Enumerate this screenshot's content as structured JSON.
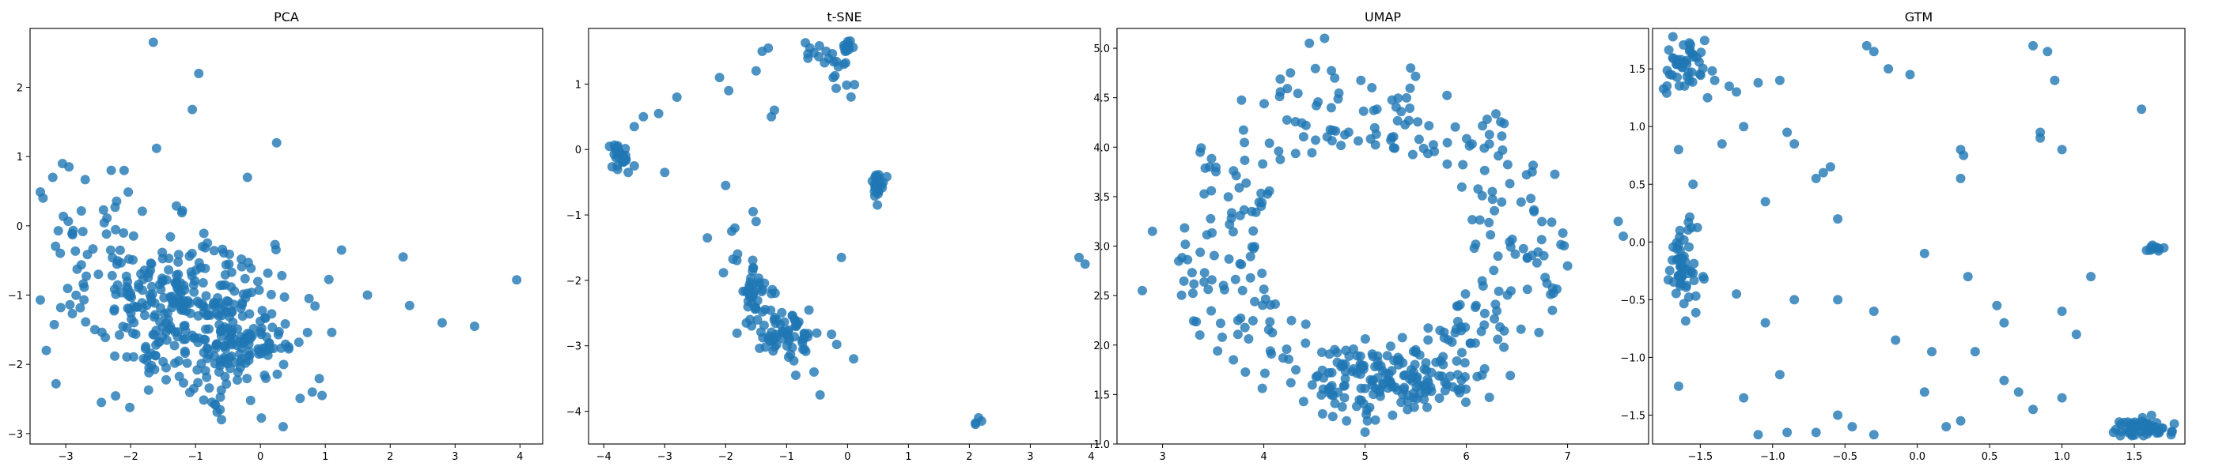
{
  "chart_data": [
    {
      "type": "scatter",
      "title": "PCA",
      "xlabel": "",
      "ylabel": "",
      "xlim": [
        -3.55,
        4.35
      ],
      "ylim": [
        -3.15,
        2.85
      ],
      "xticks": [
        -3,
        -2,
        -1,
        0,
        1,
        2,
        3,
        4
      ],
      "yticks": [
        -3,
        -2,
        -1,
        0,
        1,
        2
      ],
      "grid": false,
      "color": "#1f77b4",
      "clusters": [
        {
          "cx": -1.2,
          "cy": -1.2,
          "sx": 0.7,
          "sy": 0.55,
          "n": 260
        },
        {
          "cx": -0.3,
          "cy": -1.7,
          "sx": 0.55,
          "sy": 0.5,
          "n": 120
        },
        {
          "cx": -2.3,
          "cy": -0.3,
          "sx": 0.5,
          "sy": 0.5,
          "n": 50
        }
      ],
      "points": [
        {
          "x": -1.65,
          "y": 2.65
        },
        {
          "x": -0.95,
          "y": 2.2
        },
        {
          "x": -1.05,
          "y": 1.68
        },
        {
          "x": 0.25,
          "y": 1.2
        },
        {
          "x": -1.6,
          "y": 1.12
        },
        {
          "x": -3.05,
          "y": 0.9
        },
        {
          "x": -2.95,
          "y": 0.85
        },
        {
          "x": -3.2,
          "y": 0.7
        },
        {
          "x": -3.35,
          "y": 0.4
        },
        {
          "x": -0.2,
          "y": 0.7
        },
        {
          "x": -2.1,
          "y": 0.8
        },
        {
          "x": -3.4,
          "y": -1.07
        },
        {
          "x": -3.3,
          "y": -1.8
        },
        {
          "x": -3.15,
          "y": -2.28
        },
        {
          "x": -2.45,
          "y": -2.55
        },
        {
          "x": 1.25,
          "y": -0.35
        },
        {
          "x": 2.2,
          "y": -0.45
        },
        {
          "x": 1.65,
          "y": -1.0
        },
        {
          "x": 2.3,
          "y": -1.15
        },
        {
          "x": 2.8,
          "y": -1.4
        },
        {
          "x": 3.3,
          "y": -1.45
        },
        {
          "x": 3.95,
          "y": -0.78
        },
        {
          "x": 0.35,
          "y": -2.9
        },
        {
          "x": -0.6,
          "y": -2.8
        },
        {
          "x": 0.8,
          "y": -2.4
        },
        {
          "x": 0.95,
          "y": -2.45
        },
        {
          "x": 0.75,
          "y": -1.05
        }
      ]
    },
    {
      "type": "scatter",
      "title": "t-SNE",
      "xlabel": "",
      "ylabel": "",
      "xlim": [
        -4.25,
        4.15
      ],
      "ylim": [
        -4.5,
        1.85
      ],
      "xticks": [
        -4,
        -3,
        -2,
        -1,
        0,
        1,
        2,
        3,
        4
      ],
      "yticks": [
        -4,
        -3,
        -2,
        -1,
        0,
        1
      ],
      "grid": false,
      "color": "#1f77b4",
      "clusters": [
        {
          "cx": -1.55,
          "cy": -2.15,
          "sx": 0.18,
          "sy": 0.25,
          "n": 40
        },
        {
          "cx": -1.0,
          "cy": -2.8,
          "sx": 0.28,
          "sy": 0.2,
          "n": 70
        },
        {
          "cx": -3.75,
          "cy": -0.1,
          "sx": 0.1,
          "sy": 0.1,
          "n": 25
        },
        {
          "cx": 0.5,
          "cy": -0.52,
          "sx": 0.05,
          "sy": 0.1,
          "n": 25
        },
        {
          "cx": 0.0,
          "cy": 1.58,
          "sx": 0.05,
          "sy": 0.04,
          "n": 14
        },
        {
          "cx": -0.5,
          "cy": 1.5,
          "sx": 0.15,
          "sy": 0.1,
          "n": 12
        },
        {
          "cx": -0.1,
          "cy": 1.1,
          "sx": 0.1,
          "sy": 0.15,
          "n": 10
        }
      ],
      "points": [
        {
          "x": -3.5,
          "y": 0.35
        },
        {
          "x": -3.35,
          "y": 0.5
        },
        {
          "x": -3.1,
          "y": 0.55
        },
        {
          "x": -2.8,
          "y": 0.8
        },
        {
          "x": -3.6,
          "y": -0.35
        },
        {
          "x": -3.5,
          "y": -0.25
        },
        {
          "x": -3.0,
          "y": -0.35
        },
        {
          "x": -2.1,
          "y": 1.1
        },
        {
          "x": -1.95,
          "y": 0.9
        },
        {
          "x": -1.4,
          "y": 1.5
        },
        {
          "x": -1.3,
          "y": 1.55
        },
        {
          "x": -1.5,
          "y": 1.2
        },
        {
          "x": -1.2,
          "y": 0.6
        },
        {
          "x": -1.25,
          "y": 0.5
        },
        {
          "x": -2.0,
          "y": -0.55
        },
        {
          "x": -1.85,
          "y": -1.2
        },
        {
          "x": -1.55,
          "y": -0.95
        },
        {
          "x": -1.5,
          "y": -1.1
        },
        {
          "x": -2.3,
          "y": -1.35
        },
        {
          "x": -1.9,
          "y": -1.25
        },
        {
          "x": -0.1,
          "y": -1.65
        },
        {
          "x": -0.55,
          "y": -3.4
        },
        {
          "x": -0.45,
          "y": -3.75
        },
        {
          "x": 0.1,
          "y": -3.2
        },
        {
          "x": -0.85,
          "y": -3.45
        },
        {
          "x": 3.8,
          "y": -1.65
        },
        {
          "x": 3.9,
          "y": -1.75
        },
        {
          "x": 2.1,
          "y": -4.2
        },
        {
          "x": 2.15,
          "y": -4.1
        },
        {
          "x": 2.2,
          "y": -4.15
        },
        {
          "x": 2.1,
          "y": -4.18
        }
      ]
    },
    {
      "type": "scatter",
      "title": "UMAP",
      "xlabel": "",
      "ylabel": "",
      "xlim": [
        2.55,
        7.8
      ],
      "ylim": [
        1.0,
        5.2
      ],
      "xticks": [
        3,
        4,
        5,
        6,
        7
      ],
      "yticks": [
        1.0,
        1.5,
        2.0,
        2.5,
        3.0,
        3.5,
        4.0,
        4.5,
        5.0
      ],
      "tick_labels": {
        "y": [
          "1.0",
          "1.5",
          "2.0",
          "2.5",
          "3.0",
          "3.5",
          "4.0",
          "4.5",
          "5.0"
        ]
      },
      "grid": false,
      "color": "#1f77b4",
      "ring": {
        "cx": 5.0,
        "cy": 3.05,
        "rx": 1.55,
        "ry": 1.4,
        "width": 0.45,
        "n": 330
      },
      "clusters": [
        {
          "cx": 5.3,
          "cy": 1.65,
          "sx": 0.4,
          "sy": 0.15,
          "n": 120
        }
      ],
      "points": [
        {
          "x": 2.8,
          "y": 2.55
        },
        {
          "x": 2.9,
          "y": 3.15
        },
        {
          "x": 7.5,
          "y": 3.25
        },
        {
          "x": 7.55,
          "y": 3.1
        },
        {
          "x": 7.0,
          "y": 2.8
        },
        {
          "x": 6.85,
          "y": 2.35
        },
        {
          "x": 4.6,
          "y": 5.1
        },
        {
          "x": 4.45,
          "y": 5.05
        },
        {
          "x": 5.45,
          "y": 4.8
        },
        {
          "x": 6.65,
          "y": 3.75
        },
        {
          "x": 5.0,
          "y": 1.12
        },
        {
          "x": 3.7,
          "y": 1.85
        }
      ]
    },
    {
      "type": "scatter",
      "title": "GTM",
      "xlabel": "",
      "ylabel": "",
      "xlim": [
        -1.83,
        1.85
      ],
      "ylim": [
        -1.75,
        1.85
      ],
      "xticks": [
        -1.5,
        -1.0,
        -0.5,
        0.0,
        0.5,
        1.0,
        1.5
      ],
      "yticks": [
        -1.5,
        -1.0,
        -0.5,
        0.0,
        0.5,
        1.0,
        1.5
      ],
      "tick_labels": {
        "x": [
          "−1.5",
          "−1.0",
          "−0.5",
          "0.0",
          "0.5",
          "1.0",
          "1.5"
        ],
        "y": [
          "−1.5",
          "−1.0",
          "−0.5",
          "0.0",
          "0.5",
          "1.0",
          "1.5"
        ]
      },
      "grid": false,
      "color": "#1f77b4",
      "clusters": [
        {
          "cx": -1.6,
          "cy": 1.5,
          "sx": 0.07,
          "sy": 0.13,
          "n": 45
        },
        {
          "cx": -1.62,
          "cy": -0.2,
          "sx": 0.05,
          "sy": 0.18,
          "n": 55
        },
        {
          "cx": 1.55,
          "cy": -1.62,
          "sx": 0.1,
          "sy": 0.05,
          "n": 55
        },
        {
          "cx": 1.65,
          "cy": -0.05,
          "sx": 0.03,
          "sy": 0.01,
          "n": 10
        }
      ],
      "points": [
        {
          "x": -1.4,
          "y": 1.4
        },
        {
          "x": -1.3,
          "y": 1.35
        },
        {
          "x": -1.25,
          "y": 1.3
        },
        {
          "x": -1.45,
          "y": 1.25
        },
        {
          "x": -0.95,
          "y": 1.4
        },
        {
          "x": -1.1,
          "y": 1.38
        },
        {
          "x": -0.35,
          "y": 1.7
        },
        {
          "x": -0.3,
          "y": 1.65
        },
        {
          "x": -0.2,
          "y": 1.5
        },
        {
          "x": -0.05,
          "y": 1.45
        },
        {
          "x": 0.8,
          "y": 1.7
        },
        {
          "x": 0.9,
          "y": 1.65
        },
        {
          "x": 0.95,
          "y": 1.4
        },
        {
          "x": 1.55,
          "y": 1.15
        },
        {
          "x": -1.65,
          "y": 0.8
        },
        {
          "x": -1.55,
          "y": 0.5
        },
        {
          "x": -1.35,
          "y": 0.85
        },
        {
          "x": -1.2,
          "y": 1.0
        },
        {
          "x": -0.9,
          "y": 0.95
        },
        {
          "x": -0.85,
          "y": 0.85
        },
        {
          "x": -0.7,
          "y": 0.55
        },
        {
          "x": -0.65,
          "y": 0.6
        },
        {
          "x": -0.55,
          "y": 0.2
        },
        {
          "x": -0.6,
          "y": 0.65
        },
        {
          "x": 0.3,
          "y": 0.8
        },
        {
          "x": 0.32,
          "y": 0.75
        },
        {
          "x": 0.3,
          "y": 0.55
        },
        {
          "x": 0.85,
          "y": 0.95
        },
        {
          "x": 0.85,
          "y": 0.9
        },
        {
          "x": 1.0,
          "y": 0.8
        },
        {
          "x": -1.05,
          "y": 0.35
        },
        {
          "x": 1.2,
          "y": -0.3
        },
        {
          "x": 0.35,
          "y": -0.3
        },
        {
          "x": 0.05,
          "y": -0.1
        },
        {
          "x": -1.25,
          "y": -0.45
        },
        {
          "x": -1.05,
          "y": -0.7
        },
        {
          "x": -0.85,
          "y": -0.5
        },
        {
          "x": -0.55,
          "y": -0.5
        },
        {
          "x": -0.3,
          "y": -0.6
        },
        {
          "x": -0.15,
          "y": -0.85
        },
        {
          "x": 0.1,
          "y": -0.95
        },
        {
          "x": 0.4,
          "y": -0.95
        },
        {
          "x": 0.55,
          "y": -0.55
        },
        {
          "x": 0.6,
          "y": -0.7
        },
        {
          "x": 1.0,
          "y": -0.6
        },
        {
          "x": 1.1,
          "y": -0.8
        },
        {
          "x": -1.2,
          "y": -1.35
        },
        {
          "x": -0.9,
          "y": -1.65
        },
        {
          "x": -1.1,
          "y": -1.67
        },
        {
          "x": -0.55,
          "y": -1.5
        },
        {
          "x": -0.45,
          "y": -1.6
        },
        {
          "x": -0.3,
          "y": -1.67
        },
        {
          "x": 0.2,
          "y": -1.6
        },
        {
          "x": 0.3,
          "y": -1.55
        },
        {
          "x": 0.6,
          "y": -1.2
        },
        {
          "x": 0.7,
          "y": -1.3
        },
        {
          "x": 0.8,
          "y": -1.45
        },
        {
          "x": 1.0,
          "y": -1.35
        },
        {
          "x": -1.65,
          "y": -1.25
        },
        {
          "x": -0.7,
          "y": -1.65
        },
        {
          "x": 0.05,
          "y": -1.3
        },
        {
          "x": -0.95,
          "y": -1.15
        }
      ]
    }
  ]
}
